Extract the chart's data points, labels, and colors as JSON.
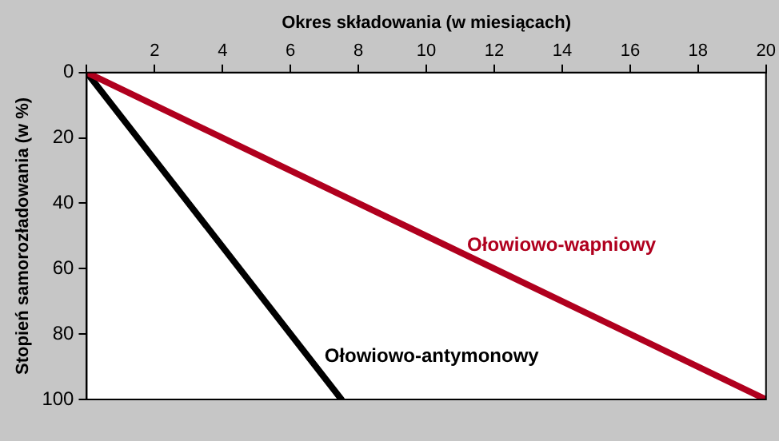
{
  "chart_data": {
    "type": "line",
    "xlabel": "Okres składowania (w miesiącach)",
    "ylabel": "Stopień samorozładowania (w %)",
    "series": [
      {
        "name": "Ołowiowo-wapniowy",
        "color": "#b0001e",
        "x": [
          0,
          20
        ],
        "values": [
          0,
          100
        ]
      },
      {
        "name": "Ołowiowo-antymonowy",
        "color": "#000000",
        "x": [
          0,
          7.5
        ],
        "values": [
          0,
          100
        ]
      }
    ],
    "xlim": [
      0,
      20
    ],
    "xticks": [
      {
        "value": 0,
        "label": null
      },
      2,
      4,
      6,
      8,
      10,
      12,
      14,
      16,
      18,
      20
    ],
    "ylim": [
      100,
      0
    ],
    "yticks": [
      0,
      20,
      40,
      60,
      80,
      100
    ],
    "grid": false,
    "legend": false,
    "marker": "none",
    "line_style": "solid"
  }
}
